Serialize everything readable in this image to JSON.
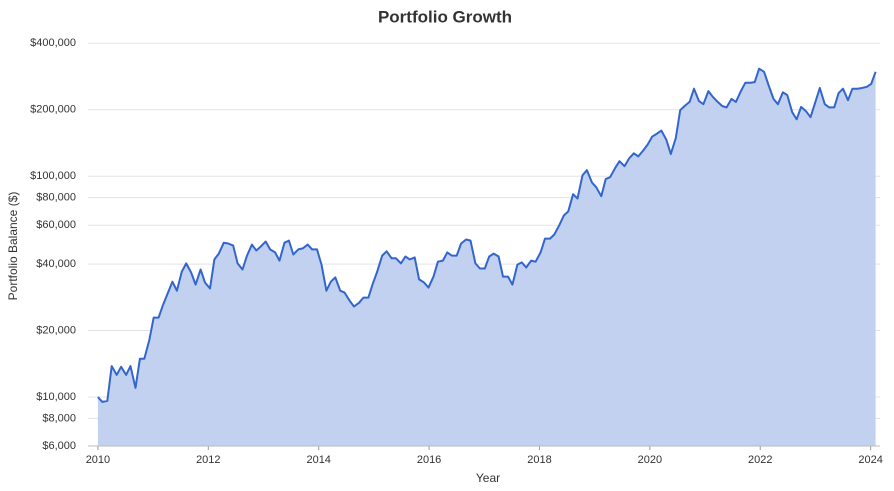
{
  "chart_data": {
    "type": "area",
    "title": "Portfolio Growth",
    "xlabel": "Year",
    "ylabel": "Portfolio Balance ($)",
    "color": "#3366cc",
    "fill": "#c2d1f0",
    "log_y": true,
    "grid": true,
    "xlim": [
      2009.82,
      2024.17
    ],
    "ylim": [
      6000,
      450000
    ],
    "xticks": [
      2010,
      2012,
      2014,
      2016,
      2018,
      2020,
      2022,
      2024
    ],
    "yticks": [
      {
        "value": 6000,
        "label": "$6,000"
      },
      {
        "value": 8000,
        "label": "$8,000"
      },
      {
        "value": 10000,
        "label": "$10,000"
      },
      {
        "value": 20000,
        "label": "$20,000"
      },
      {
        "value": 40000,
        "label": "$40,000"
      },
      {
        "value": 60000,
        "label": "$60,000"
      },
      {
        "value": 80000,
        "label": "$80,000"
      },
      {
        "value": 100000,
        "label": "$100,000"
      },
      {
        "value": 200000,
        "label": "$200,000"
      },
      {
        "value": 400000,
        "label": "$400,000"
      }
    ],
    "x": [
      2010.0,
      2010.08,
      2010.17,
      2010.25,
      2010.34,
      2010.42,
      2010.51,
      2010.59,
      2010.68,
      2010.76,
      2010.84,
      2010.93,
      2011.01,
      2011.1,
      2011.18,
      2011.27,
      2011.35,
      2011.43,
      2011.52,
      2011.6,
      2011.69,
      2011.77,
      2011.86,
      2011.94,
      2012.03,
      2012.11,
      2012.19,
      2012.28,
      2012.36,
      2012.45,
      2012.53,
      2012.62,
      2012.7,
      2012.79,
      2012.87,
      2012.95,
      2013.04,
      2013.12,
      2013.21,
      2013.29,
      2013.38,
      2013.46,
      2013.54,
      2013.63,
      2013.71,
      2013.8,
      2013.88,
      2013.97,
      2014.05,
      2014.14,
      2014.22,
      2014.3,
      2014.39,
      2014.47,
      2014.56,
      2014.64,
      2014.73,
      2014.81,
      2014.9,
      2014.98,
      2015.06,
      2015.15,
      2015.23,
      2015.32,
      2015.4,
      2015.49,
      2015.57,
      2015.65,
      2015.74,
      2015.82,
      2015.91,
      2015.99,
      2016.08,
      2016.16,
      2016.25,
      2016.33,
      2016.41,
      2016.5,
      2016.58,
      2016.67,
      2016.75,
      2016.84,
      2016.92,
      2017.01,
      2017.09,
      2017.17,
      2017.26,
      2017.34,
      2017.43,
      2017.51,
      2017.6,
      2017.68,
      2017.76,
      2017.85,
      2017.93,
      2018.02,
      2018.1,
      2018.19,
      2018.27,
      2018.36,
      2018.44,
      2018.52,
      2018.61,
      2018.69,
      2018.78,
      2018.86,
      2018.95,
      2019.03,
      2019.12,
      2019.2,
      2019.28,
      2019.37,
      2019.45,
      2019.54,
      2019.62,
      2019.71,
      2019.79,
      2019.87,
      2019.96,
      2020.04,
      2020.13,
      2020.21,
      2020.3,
      2020.38,
      2020.47,
      2020.55,
      2020.63,
      2020.72,
      2020.8,
      2020.89,
      2020.97,
      2021.06,
      2021.14,
      2021.23,
      2021.31,
      2021.39,
      2021.48,
      2021.56,
      2021.65,
      2021.73,
      2021.82,
      2021.9,
      2021.98,
      2022.07,
      2022.15,
      2022.24,
      2022.32,
      2022.41,
      2022.49,
      2022.58,
      2022.66,
      2022.74,
      2022.83,
      2022.91,
      2023.0,
      2023.08,
      2023.17,
      2023.25,
      2023.34,
      2023.42,
      2023.5,
      2023.59,
      2023.67,
      2023.76,
      2023.84,
      2023.93,
      2024.01,
      2024.09
    ],
    "values": [
      10000,
      9500,
      9600,
      13800,
      12600,
      13700,
      12600,
      13800,
      11000,
      14900,
      14900,
      18100,
      22900,
      22900,
      26200,
      29700,
      33300,
      30300,
      37000,
      40300,
      36600,
      32300,
      37800,
      33000,
      31000,
      42000,
      44600,
      50000,
      49600,
      48500,
      40300,
      37800,
      43700,
      49000,
      46100,
      48000,
      50600,
      46600,
      45200,
      41500,
      50000,
      51100,
      44200,
      46600,
      47100,
      49000,
      46600,
      46600,
      39800,
      30300,
      33300,
      34800,
      30300,
      29700,
      27300,
      25700,
      26700,
      28200,
      28200,
      32600,
      37000,
      43700,
      45700,
      42500,
      42500,
      40300,
      43300,
      42000,
      42900,
      34100,
      33000,
      31300,
      35100,
      41000,
      41500,
      45200,
      43700,
      43700,
      49600,
      51700,
      51100,
      40300,
      38200,
      38200,
      43300,
      44600,
      43300,
      35100,
      35100,
      32300,
      39800,
      40700,
      38600,
      41500,
      41000,
      45200,
      52200,
      52200,
      54500,
      60000,
      66400,
      69200,
      82900,
      79300,
      101000,
      106600,
      93800,
      89100,
      81100,
      97000,
      99000,
      108800,
      117000,
      111000,
      120000,
      127000,
      123000,
      130000,
      139000,
      151000,
      156000,
      161000,
      146000,
      126000,
      149000,
      199000,
      208000,
      217000,
      249000,
      219000,
      212000,
      243000,
      229000,
      217000,
      208000,
      205000,
      224000,
      217000,
      243000,
      265000,
      265000,
      267000,
      307000,
      297000,
      259000,
      224000,
      212000,
      240000,
      233000,
      195000,
      181000,
      206000,
      197000,
      185000,
      217000,
      251000,
      212000,
      205000,
      205000,
      238000,
      249000,
      221000,
      249000,
      249000,
      251000,
      254000,
      262000,
      297000
    ]
  }
}
